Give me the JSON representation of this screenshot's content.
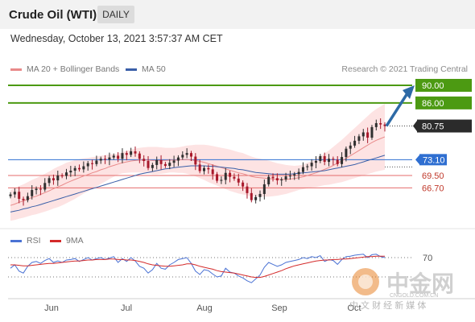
{
  "header": {
    "title": "Crude Oil (WTI)",
    "timeframe": "DAILY",
    "date": "Wednesday, October 13, 2021 3:57:37 AM CET"
  },
  "legend": {
    "ma20_label": "MA 20 + Bollinger Bands",
    "ma50_label": "MA 50",
    "credit": "Research © 2021 Trading Central"
  },
  "colors": {
    "ma20": "#e98a8a",
    "ma50": "#3a5fa8",
    "bollinger_fill": "#fde3e3",
    "resistance": "#4c9a12",
    "support": "#e46b6b",
    "pivot": "#2f6fd1",
    "price_box": "#2b2b2b",
    "arrow": "#2d6aa6",
    "rsi": "#4a72d4",
    "rsi_ma": "#d42a2a",
    "up_candle": "#2f2f2f",
    "down_candle": "#a8192b"
  },
  "watermark": {
    "main": "中金网",
    "url": "CNGOLD.COM.CN",
    "sub": "中 文 财 经 新 媒 体"
  },
  "chart_data": {
    "type": "candlestick",
    "x_ticks": [
      "Jun",
      "Jul",
      "Aug",
      "Sep",
      "Oct"
    ],
    "levels": [
      {
        "value": 90.0,
        "label": "90.00",
        "kind": "resistance"
      },
      {
        "value": 86.0,
        "label": "86.00",
        "kind": "resistance"
      },
      {
        "value": 80.75,
        "label": "80.75",
        "kind": "last_price"
      },
      {
        "value": 73.1,
        "label": "73.10",
        "kind": "pivot"
      },
      {
        "value": 69.5,
        "label": "69.50",
        "kind": "support"
      },
      {
        "value": 66.7,
        "label": "66.70",
        "kind": "support"
      }
    ],
    "closes": [
      65.2,
      65.8,
      64.2,
      63.9,
      64.8,
      66.2,
      66.5,
      66.3,
      67.8,
      68.9,
      68.4,
      69.5,
      69.4,
      70.2,
      70.6,
      71.2,
      70.9,
      71.6,
      72.3,
      72.1,
      72.9,
      73.3,
      73.1,
      73.6,
      74.0,
      73.3,
      74.6,
      74.2,
      75.0,
      74.5,
      73.3,
      72.8,
      71.2,
      71.9,
      73.0,
      72.1,
      71.7,
      72.4,
      72.9,
      73.6,
      74.2,
      74.6,
      73.8,
      72.0,
      70.5,
      71.2,
      70.9,
      69.8,
      68.3,
      68.5,
      70.1,
      69.2,
      68.8,
      67.9,
      67.0,
      65.5,
      63.9,
      64.6,
      65.3,
      67.5,
      69.2,
      68.9,
      68.4,
      68.6,
      69.3,
      69.5,
      69.8,
      70.3,
      71.4,
      71.6,
      72.4,
      72.8,
      73.9,
      72.6,
      73.3,
      73.1,
      72.1,
      73.7,
      75.6,
      76.3,
      77.4,
      78.4,
      79.3,
      78.1,
      80.5,
      81.4,
      81.1,
      80.75
    ],
    "ma20": [
      62.7,
      63.0,
      63.4,
      63.7,
      64.1,
      64.5,
      64.8,
      65.2,
      65.6,
      66.0,
      66.5,
      66.9,
      67.3,
      67.8,
      68.2,
      68.6,
      69.0,
      69.4,
      69.7,
      70.1,
      70.4,
      70.8,
      71.1,
      71.5,
      71.8,
      72.1,
      72.4,
      72.6,
      72.8,
      72.9,
      73.0,
      73.0,
      73.0,
      72.9,
      72.9,
      72.9,
      72.9,
      73.0,
      73.0,
      73.0,
      73.1,
      73.1,
      73.0,
      72.9,
      72.7,
      72.5,
      72.2,
      71.9,
      71.6,
      71.3,
      71.0,
      70.7,
      70.4,
      70.1,
      69.9,
      69.6,
      69.3,
      69.1,
      69.0,
      68.9,
      68.8,
      68.7,
      68.6,
      68.6,
      68.6,
      68.7,
      68.8,
      69.0,
      69.2,
      69.5,
      69.8,
      70.1,
      70.5,
      70.9,
      71.3,
      71.8,
      72.3,
      72.8,
      73.4,
      74.0,
      74.6,
      75.2,
      75.8,
      76.4,
      77.0,
      77.5,
      77.9,
      78.3
    ],
    "ma50": [
      61.2,
      61.4,
      61.6,
      61.9,
      62.1,
      62.4,
      62.6,
      62.9,
      63.2,
      63.5,
      63.8,
      64.1,
      64.4,
      64.7,
      65.0,
      65.3,
      65.6,
      65.9,
      66.2,
      66.5,
      66.8,
      67.1,
      67.4,
      67.7,
      68.0,
      68.3,
      68.6,
      68.9,
      69.2,
      69.5,
      69.8,
      70.0,
      70.2,
      70.4,
      70.6,
      70.8,
      71.0,
      71.1,
      71.3,
      71.4,
      71.5,
      71.6,
      71.7,
      71.7,
      71.7,
      71.7,
      71.6,
      71.6,
      71.5,
      71.4,
      71.3,
      71.2,
      71.1,
      70.9,
      70.8,
      70.6,
      70.4,
      70.2,
      70.1,
      70.0,
      69.9,
      69.8,
      69.8,
      69.8,
      69.8,
      69.8,
      69.9,
      70.0,
      70.1,
      70.2,
      70.3,
      70.4,
      70.5,
      70.6,
      70.8,
      71.0,
      71.2,
      71.4,
      71.6,
      71.8,
      72.0,
      72.3,
      72.6,
      72.9,
      73.2,
      73.5,
      73.8,
      74.1
    ],
    "bollinger_width": [
      3.5,
      3.6,
      3.7,
      3.8,
      3.9,
      4.0,
      4.1,
      4.2,
      4.3,
      4.4,
      4.5,
      4.6,
      4.6,
      4.6,
      4.5,
      4.4,
      4.2,
      4.0,
      3.8,
      3.6,
      3.4,
      3.2,
      3.0,
      2.8,
      2.6,
      2.4,
      2.4,
      2.5,
      2.6,
      2.7,
      2.8,
      2.9,
      3.0,
      3.1,
      3.1,
      3.0,
      2.9,
      2.8,
      2.8,
      2.9,
      3.0,
      3.2,
      3.4,
      3.6,
      3.8,
      4.0,
      4.2,
      4.3,
      4.4,
      4.5,
      4.6,
      4.7,
      4.7,
      4.7,
      4.7,
      4.6,
      4.5,
      4.4,
      4.3,
      4.2,
      4.1,
      3.9,
      3.7,
      3.5,
      3.3,
      3.1,
      2.9,
      2.8,
      2.8,
      2.9,
      3.0,
      3.2,
      3.4,
      3.6,
      3.9,
      4.2,
      4.5,
      4.8,
      5.1,
      5.4,
      5.7,
      6.0,
      6.3,
      6.6,
      6.9,
      7.1,
      7.3,
      7.5
    ],
    "projection": {
      "from": 80.75,
      "to": 90.0
    },
    "rsi": {
      "label": "RSI",
      "ma_label": "9MA",
      "overbought": 70,
      "overbought_label": "70",
      "values": [
        48,
        55,
        42,
        38,
        52,
        60,
        62,
        58,
        64,
        68,
        60,
        63,
        60,
        65,
        66,
        68,
        62,
        66,
        70,
        65,
        68,
        70,
        66,
        69,
        72,
        60,
        68,
        62,
        70,
        63,
        52,
        48,
        38,
        45,
        58,
        48,
        46,
        55,
        60,
        66,
        68,
        70,
        58,
        42,
        35,
        45,
        43,
        36,
        30,
        32,
        48,
        40,
        38,
        32,
        28,
        22,
        18,
        26,
        34,
        50,
        60,
        56,
        52,
        55,
        60,
        62,
        64,
        66,
        70,
        68,
        72,
        70,
        74,
        62,
        66,
        64,
        56,
        66,
        72,
        73,
        75,
        76,
        77,
        70,
        76,
        77,
        72,
        70
      ],
      "ma": [
        55,
        55,
        54,
        53,
        53,
        54,
        55,
        56,
        57,
        58,
        58,
        59,
        60,
        61,
        62,
        63,
        63,
        64,
        65,
        65,
        66,
        66,
        66,
        67,
        67,
        66,
        66,
        65,
        65,
        64,
        62,
        60,
        57,
        55,
        54,
        53,
        52,
        52,
        53,
        54,
        55,
        57,
        57,
        55,
        52,
        50,
        48,
        46,
        43,
        41,
        40,
        39,
        38,
        36,
        34,
        32,
        30,
        29,
        29,
        31,
        34,
        37,
        40,
        43,
        47,
        50,
        53,
        55,
        57,
        59,
        61,
        63,
        64,
        65,
        65,
        66,
        66,
        67,
        67,
        68,
        69,
        70,
        71,
        72,
        72,
        73,
        73,
        73
      ]
    }
  }
}
